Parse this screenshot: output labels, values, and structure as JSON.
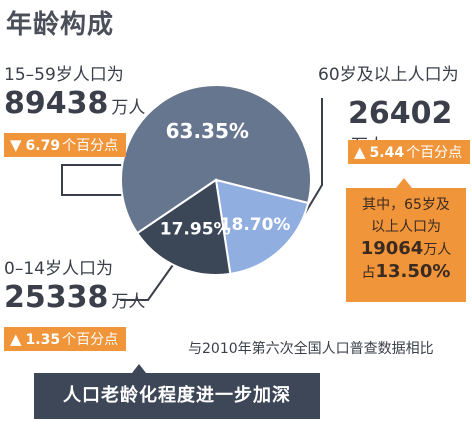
{
  "title": "年龄构成",
  "chart_data": {
    "type": "pie",
    "categories": [
      "15-59岁",
      "60岁及以上",
      "0-14岁"
    ],
    "values": [
      63.35,
      18.7,
      17.95
    ],
    "value_labels": [
      "63.35%",
      "18.70%",
      "17.95%"
    ],
    "colors": [
      "#67768f",
      "#90aee0",
      "#3b4657"
    ]
  },
  "groups": {
    "working_age": {
      "label": "15–59岁人口为",
      "value": "89438",
      "unit": "万人",
      "change_direction": "down",
      "change": "6.79",
      "change_suffix": "个百分点"
    },
    "elderly": {
      "label": "60岁及以上人口为",
      "value": "26402",
      "unit": "万人",
      "change_direction": "up",
      "change": "5.44",
      "change_suffix": "个百分点"
    },
    "children": {
      "label": "0–14岁人口为",
      "value": "25338",
      "unit": "万人",
      "change_direction": "up",
      "change": "1.35",
      "change_suffix": "个百分点"
    }
  },
  "callout_65": {
    "line1": "其中，65岁及",
    "line2": "以上人口为",
    "value": "19064",
    "unit": "万人",
    "share_prefix": "占",
    "share": "13.50%"
  },
  "comparison_note": "与2010年第六次全国人口普查数据相比",
  "footer_banner": "人口老龄化程度进一步加深",
  "accent_color": "#f0953a",
  "banner_color": "#3e4757"
}
